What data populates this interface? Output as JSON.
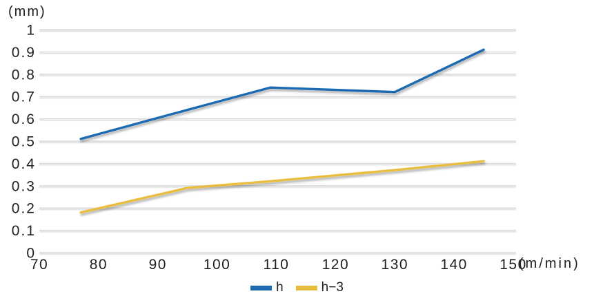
{
  "chart_data": {
    "type": "line",
    "x": [
      77,
      95,
      109,
      130,
      145
    ],
    "series": [
      {
        "name": "h",
        "color": "#1c6ab1",
        "values": [
          0.51,
          0.64,
          0.74,
          0.72,
          0.91
        ]
      },
      {
        "name": "h−3",
        "color": "#e9bd3c",
        "values": [
          0.18,
          0.29,
          0.32,
          0.37,
          0.41
        ]
      }
    ],
    "title": "",
    "xlabel": "(m/min)",
    "ylabel": "(mm)",
    "xlim": [
      70,
      150.5
    ],
    "ylim": [
      0,
      1
    ],
    "xticks": [
      70,
      80,
      90,
      100,
      110,
      120,
      130,
      140,
      150
    ],
    "yticks": [
      0,
      0.1,
      0.2,
      0.3,
      0.4,
      0.5,
      0.6,
      0.7,
      0.8,
      0.9,
      1
    ],
    "ytick_labels": [
      "0",
      "0.1",
      "0.2",
      "0.3",
      "0.4",
      "0.5",
      "0.6",
      "0.7",
      "0.8",
      "0.9",
      "1"
    ],
    "grid": "horizontal",
    "legend_position": "bottom-center",
    "gridline_color": "#d9d9d9",
    "text_color": "#1f1f1f",
    "background_color": "#ffffff"
  }
}
